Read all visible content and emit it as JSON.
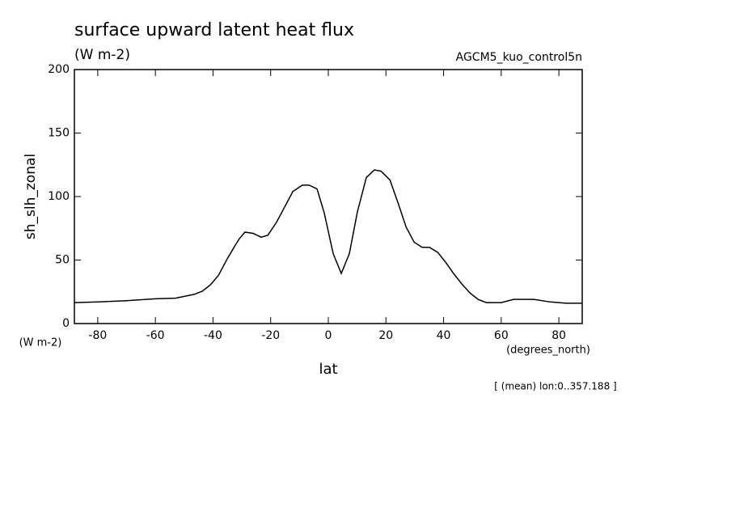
{
  "chart_data": {
    "type": "line",
    "title": "surface upward latent heat flux",
    "subtitle": "(W m-2)",
    "model_label": "AGCM5_kuo_control5n",
    "ylabel": "sh_slh_zonal",
    "y_units": "(W m-2)",
    "xlabel": "lat",
    "x_units": "(degrees_north)",
    "annotation": "[ (mean) lon:0..357.188 ]",
    "x": [
      -88,
      -80,
      -70,
      -60,
      -53,
      -46.5,
      -43.7,
      -40.9,
      -38.1,
      -35.3,
      -32.2,
      -30.8,
      -28.9,
      -26.1,
      -23.3,
      -21,
      -17.9,
      -15.1,
      -12.3,
      -9,
      -6.7,
      -3.9,
      -1.4,
      1.7,
      4.5,
      7.3,
      10.1,
      13.2,
      16,
      18.3,
      21.4,
      24.2,
      27,
      29.8,
      32.6,
      35.1,
      38,
      40.8,
      43.6,
      46.4,
      49.2,
      52,
      54.8,
      60,
      64.3,
      71.3,
      77,
      82.6,
      88
    ],
    "series": [
      {
        "color": "#000000",
        "values": [
          16.5,
          17,
          18,
          19.5,
          20,
          23,
          25.5,
          30.5,
          38,
          50,
          62,
          67,
          72,
          71,
          68,
          69.5,
          80,
          92,
          104,
          109,
          109,
          106,
          87,
          55,
          39.5,
          55,
          88,
          115,
          121,
          120,
          113,
          95,
          76,
          64,
          60,
          60,
          56,
          48,
          39,
          31,
          24,
          19,
          16.5,
          16.5,
          19,
          19,
          17,
          16,
          16
        ]
      }
    ],
    "xlim": [
      -88.1,
      88.1
    ],
    "xticks": [
      -80,
      -60,
      -40,
      -20,
      0,
      20,
      40,
      60,
      80
    ],
    "ylim": [
      0,
      200
    ],
    "yticks": [
      0,
      50,
      100,
      150,
      200
    ]
  }
}
